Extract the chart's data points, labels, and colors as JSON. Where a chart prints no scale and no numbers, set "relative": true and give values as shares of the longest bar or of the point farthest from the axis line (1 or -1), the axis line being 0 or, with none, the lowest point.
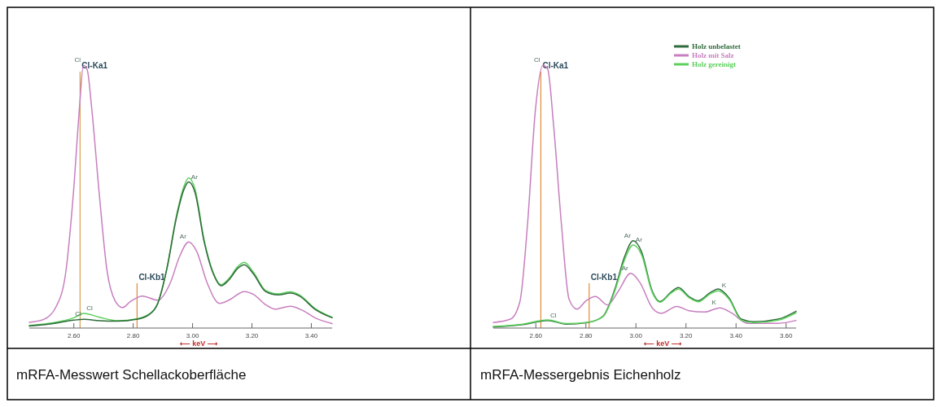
{
  "chart_data": [
    {
      "type": "line",
      "title": "mRFA-Messwert Schellackoberfläche",
      "xlabel": "⟵ keV ⟶",
      "relative": true,
      "xlim": [
        2.45,
        3.47
      ],
      "xticks": [
        {
          "value": 2.6,
          "label": "2.60"
        },
        {
          "value": 2.8,
          "label": "2.80"
        },
        {
          "value": 3.0,
          "label": "3.00"
        },
        {
          "value": 3.2,
          "label": "3.20"
        },
        {
          "value": 3.4,
          "label": "3.40"
        }
      ],
      "series": [
        {
          "color": "#c77fbf",
          "x": [
            2.45,
            2.499,
            2.541,
            2.572,
            2.598,
            2.619,
            2.632,
            2.645,
            2.66,
            2.686,
            2.712,
            2.738,
            2.764,
            2.79,
            2.831,
            2.883,
            2.925,
            2.956,
            2.987,
            3.013,
            3.049,
            3.091,
            3.122,
            3.174,
            3.205,
            3.246,
            3.278,
            3.329,
            3.371,
            3.412,
            3.47
          ],
          "values": [
            0.022,
            0.033,
            0.083,
            0.206,
            0.506,
            0.839,
            1.0,
            0.983,
            0.839,
            0.506,
            0.217,
            0.106,
            0.078,
            0.1,
            0.122,
            0.106,
            0.172,
            0.272,
            0.328,
            0.294,
            0.172,
            0.094,
            0.106,
            0.139,
            0.128,
            0.089,
            0.072,
            0.083,
            0.067,
            0.039,
            0.017
          ]
        },
        {
          "color": "#5ccf5c",
          "x": [
            2.45,
            2.53,
            2.6,
            2.634,
            2.686,
            2.748,
            2.811,
            2.852,
            2.883,
            2.914,
            2.945,
            2.971,
            2.987,
            3.008,
            3.039,
            3.07,
            3.096,
            3.122,
            3.153,
            3.174,
            3.205,
            3.246,
            3.288,
            3.329,
            3.36,
            3.412,
            3.47
          ],
          "values": [
            0.01,
            0.02,
            0.039,
            0.056,
            0.041,
            0.028,
            0.035,
            0.052,
            0.097,
            0.232,
            0.425,
            0.54,
            0.572,
            0.53,
            0.335,
            0.21,
            0.165,
            0.188,
            0.235,
            0.25,
            0.212,
            0.143,
            0.13,
            0.138,
            0.126,
            0.075,
            0.041
          ]
        },
        {
          "color": "#2e6b3a",
          "x": [
            2.45,
            2.53,
            2.6,
            2.634,
            2.686,
            2.748,
            2.811,
            2.852,
            2.883,
            2.914,
            2.945,
            2.971,
            2.987,
            3.008,
            3.039,
            3.07,
            3.096,
            3.122,
            3.153,
            3.174,
            3.205,
            3.246,
            3.288,
            3.329,
            3.36,
            3.412,
            3.47
          ],
          "values": [
            0.008,
            0.017,
            0.03,
            0.033,
            0.028,
            0.026,
            0.033,
            0.05,
            0.094,
            0.228,
            0.417,
            0.528,
            0.556,
            0.517,
            0.328,
            0.206,
            0.161,
            0.183,
            0.228,
            0.241,
            0.206,
            0.139,
            0.126,
            0.133,
            0.122,
            0.072,
            0.039
          ]
        }
      ],
      "ref_lines": [
        {
          "axis": "x",
          "value": 2.621,
          "label": "Cl-Ka1",
          "color": "#d9a050"
        },
        {
          "axis": "x",
          "value": 2.813,
          "label": "Cl-Kb1",
          "color": "#e08a3a"
        }
      ],
      "annotations": [
        {
          "text": "Cl",
          "x": 2.632,
          "y": 1.0
        },
        {
          "text": "Cl",
          "x": 2.634,
          "y": 0.056
        },
        {
          "text": "Cl",
          "x": 2.634,
          "y": 0.033
        },
        {
          "text": "Ar",
          "x": 2.987,
          "y": 0.556
        },
        {
          "text": "Ar",
          "x": 2.987,
          "y": 0.328
        }
      ]
    },
    {
      "type": "line",
      "title": "mRFA-Messergebnis Eichenholz",
      "xlabel": "⟵ keV ⟶",
      "relative": true,
      "xlim": [
        2.43,
        3.64
      ],
      "legend": "top right",
      "xticks": [
        {
          "value": 2.6,
          "label": "2.60"
        },
        {
          "value": 2.8,
          "label": "2.80"
        },
        {
          "value": 3.0,
          "label": "3.00"
        },
        {
          "value": 3.2,
          "label": "3.20"
        },
        {
          "value": 3.4,
          "label": "3.40"
        },
        {
          "value": 3.6,
          "label": "3.60"
        }
      ],
      "series": [
        {
          "name": "Holz unbelastet",
          "color": "#2e6b3a",
          "x": [
            2.43,
            2.548,
            2.647,
            2.721,
            2.807,
            2.868,
            2.917,
            2.954,
            2.989,
            3.022,
            3.065,
            3.096,
            3.139,
            3.17,
            3.212,
            3.249,
            3.298,
            3.329,
            3.372,
            3.421,
            3.471,
            3.569,
            3.64
          ],
          "values": [
            0.004,
            0.013,
            0.029,
            0.015,
            0.021,
            0.045,
            0.152,
            0.27,
            0.332,
            0.291,
            0.141,
            0.101,
            0.136,
            0.154,
            0.12,
            0.104,
            0.136,
            0.149,
            0.115,
            0.034,
            0.024,
            0.034,
            0.064
          ]
        },
        {
          "name": "Holz mit Salz",
          "color": "#c77fbf",
          "x": [
            2.43,
            2.499,
            2.536,
            2.567,
            2.598,
            2.628,
            2.647,
            2.671,
            2.702,
            2.733,
            2.764,
            2.801,
            2.838,
            2.887,
            2.93,
            2.979,
            3.016,
            3.065,
            3.102,
            3.163,
            3.212,
            3.274,
            3.335,
            3.384,
            3.446,
            3.569,
            3.64
          ],
          "values": [
            0.021,
            0.034,
            0.099,
            0.398,
            0.827,
            1.0,
            0.987,
            0.771,
            0.398,
            0.109,
            0.072,
            0.104,
            0.12,
            0.088,
            0.141,
            0.208,
            0.173,
            0.077,
            0.056,
            0.082,
            0.066,
            0.061,
            0.077,
            0.056,
            0.018,
            0.018,
            0.029
          ]
        },
        {
          "name": "Holz gereinigt",
          "color": "#5ccf5c",
          "x": [
            2.43,
            2.548,
            2.647,
            2.721,
            2.807,
            2.868,
            2.917,
            2.954,
            2.989,
            3.022,
            3.065,
            3.096,
            3.139,
            3.17,
            3.212,
            3.249,
            3.298,
            3.329,
            3.372,
            3.421,
            3.471,
            3.569,
            3.64
          ],
          "values": [
            0.006,
            0.015,
            0.031,
            0.017,
            0.022,
            0.043,
            0.145,
            0.258,
            0.316,
            0.28,
            0.136,
            0.098,
            0.132,
            0.149,
            0.116,
            0.1,
            0.131,
            0.142,
            0.11,
            0.03,
            0.02,
            0.03,
            0.058
          ]
        }
      ],
      "ref_lines": [
        {
          "axis": "x",
          "value": 2.62,
          "label": "Cl-Ka1",
          "color": "#e08a3a"
        },
        {
          "axis": "x",
          "value": 2.813,
          "label": "Cl-Kb1",
          "color": "#e08a3a"
        }
      ],
      "annotations": [
        {
          "text": "Cl",
          "x": 2.628,
          "y": 1.0
        },
        {
          "text": "Cl",
          "x": 2.647,
          "y": 0.029
        },
        {
          "text": "Ar",
          "x": 2.989,
          "y": 0.332
        },
        {
          "text": "Ar",
          "x": 2.989,
          "y": 0.316
        },
        {
          "text": "Ar",
          "x": 2.979,
          "y": 0.208
        },
        {
          "text": "K",
          "x": 3.329,
          "y": 0.142
        },
        {
          "text": "K",
          "x": 3.335,
          "y": 0.077
        }
      ]
    }
  ]
}
